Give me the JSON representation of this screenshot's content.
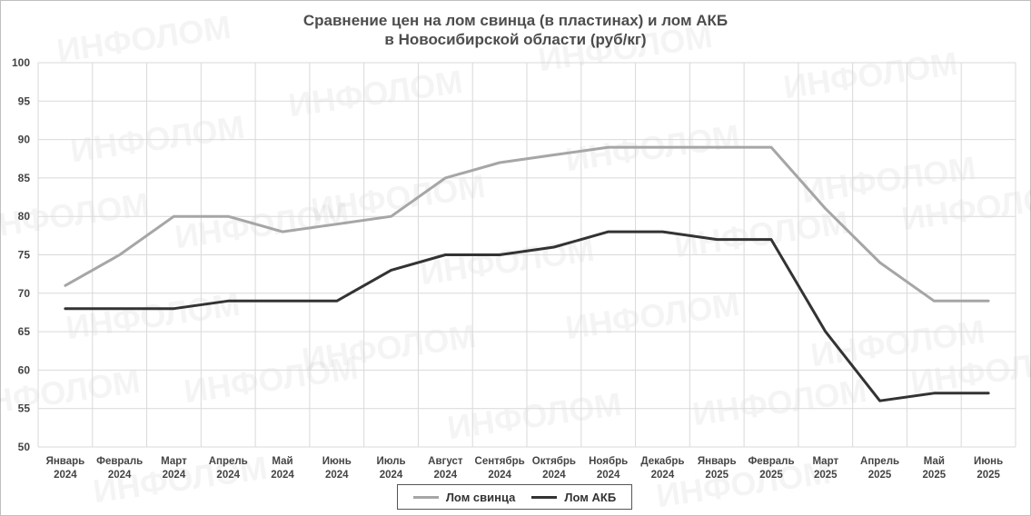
{
  "watermark_text": "ИНФОЛОМ",
  "chart_data": {
    "type": "line",
    "title_lines": [
      "Сравнение цен на лом свинца (в пластинах) и лом АКБ",
      "в Новосибирской области (руб/кг)"
    ],
    "categories": [
      [
        "Январь",
        "2024"
      ],
      [
        "Февраль",
        "2024"
      ],
      [
        "Март",
        "2024"
      ],
      [
        "Апрель",
        "2024"
      ],
      [
        "Май",
        "2024"
      ],
      [
        "Июнь",
        "2024"
      ],
      [
        "Июль",
        "2024"
      ],
      [
        "Август",
        "2024"
      ],
      [
        "Сентябрь",
        "2024"
      ],
      [
        "Октябрь",
        "2024"
      ],
      [
        "Ноябрь",
        "2024"
      ],
      [
        "Декабрь",
        "2024"
      ],
      [
        "Январь",
        "2025"
      ],
      [
        "Февраль",
        "2025"
      ],
      [
        "Март",
        "2025"
      ],
      [
        "Апрель",
        "2025"
      ],
      [
        "Май",
        "2025"
      ],
      [
        "Июнь",
        "2025"
      ]
    ],
    "ylim": [
      50,
      100
    ],
    "yticks": [
      50,
      55,
      60,
      65,
      70,
      75,
      80,
      85,
      90,
      95,
      100
    ],
    "grid": true,
    "legend_position": "bottom",
    "series": [
      {
        "name": "Лом свинца",
        "color": "#a6a6a6",
        "values": [
          71,
          75,
          80,
          80,
          78,
          79,
          80,
          85,
          87,
          88,
          89,
          89,
          89,
          89,
          81,
          74,
          69,
          69
        ]
      },
      {
        "name": "Лом АКБ",
        "color": "#333333",
        "values": [
          68,
          68,
          68,
          69,
          69,
          69,
          73,
          75,
          75,
          76,
          78,
          78,
          77,
          77,
          65,
          56,
          57,
          57
        ]
      }
    ]
  }
}
